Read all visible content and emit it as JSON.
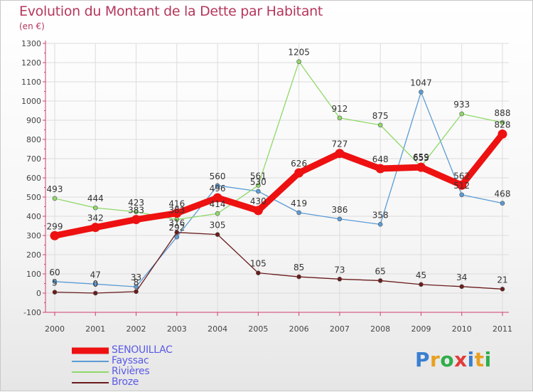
{
  "chart_data": {
    "type": "line",
    "title": "Evolution du Montant de la Dette par Habitant",
    "subtitle": "(en €)",
    "x": [
      "2000",
      "2001",
      "2002",
      "2003",
      "2004",
      "2005",
      "2006",
      "2007",
      "2008",
      "2009",
      "2010",
      "2011"
    ],
    "yticks": [
      "-100",
      "0",
      "100",
      "200",
      "300",
      "400",
      "500",
      "600",
      "700",
      "800",
      "900",
      "1000",
      "1100",
      "1200",
      "1300"
    ],
    "ylim": [
      -100,
      1300
    ],
    "grid": true,
    "legend_position": "bottom-left",
    "series": [
      {
        "name": "SENOUILLAC",
        "color": "#ee1111",
        "values": [
          299,
          342,
          383,
          416,
          496,
          430,
          626,
          727,
          648,
          655,
          562,
          828
        ],
        "labels": [
          "299",
          "342",
          "383",
          "416",
          "496",
          "430",
          "626",
          "727",
          "648",
          "655",
          "562",
          "828"
        ]
      },
      {
        "name": "Fayssac",
        "color": "#5b9bd5",
        "values": [
          60,
          47,
          33,
          292,
          560,
          530,
          419,
          386,
          358,
          1047,
          512,
          468
        ],
        "labels": [
          "60",
          "47",
          "33",
          "292",
          "560",
          "530",
          "419",
          "386",
          "358",
          "1047",
          "512",
          "468"
        ]
      },
      {
        "name": "Rivières",
        "color": "#8fd96a",
        "values": [
          493,
          444,
          423,
          383,
          414,
          561,
          1205,
          912,
          875,
          659,
          933,
          888
        ],
        "labels": [
          "493",
          "444",
          "423",
          "383",
          "414",
          "561",
          "1205",
          "912",
          "875",
          "659",
          "933",
          "888"
        ]
      },
      {
        "name": "Broze",
        "color": "#6b1c1c",
        "values": [
          5,
          0,
          8,
          316,
          305,
          105,
          85,
          73,
          65,
          45,
          34,
          21
        ],
        "labels": [
          "5",
          "0",
          "8",
          "316",
          "305",
          "105",
          "85",
          "73",
          "65",
          "45",
          "34",
          "21"
        ]
      }
    ]
  },
  "logo": {
    "text": "Proxiti",
    "letters": [
      "P",
      "r",
      "o",
      "x",
      "i",
      "t",
      "i"
    ],
    "colors": [
      "#3a7fd0",
      "#e8a020",
      "#2fae4a",
      "#e23b3b",
      "#3a7fd0",
      "#e8a020",
      "#2fae4a"
    ]
  }
}
